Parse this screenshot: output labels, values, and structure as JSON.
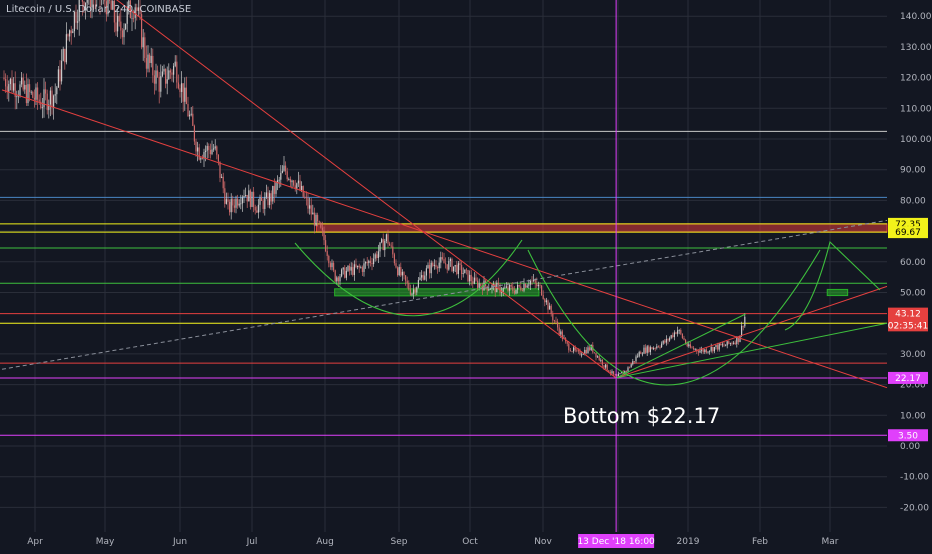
{
  "chart_title": "Litecoin / U.S. Dollar, 240, COINBASE",
  "annotation": "Bottom $22.17",
  "colors": {
    "background": "#131722",
    "grid": "#2a2e39",
    "axis_text": "#b2b5be",
    "candle_up": "#c9c9c9",
    "candle_down": "#d06a6a",
    "trend_red": "#e5403f",
    "trend_green": "#3dbf3d",
    "level_yellow": "#f2f21a",
    "level_white": "#c8c8c8",
    "level_blue": "#4a86c5",
    "level_magenta": "#e040fb",
    "zone_red": "#e03a3a",
    "zone_green": "#28b028"
  },
  "chart_data": {
    "type": "line",
    "style": "candlestick",
    "title": "Litecoin / U.S. Dollar, 240, COINBASE",
    "x_ticks": [
      "Apr",
      "May",
      "Jun",
      "Jul",
      "Aug",
      "Sep",
      "Oct",
      "Nov",
      "Dec",
      "2019",
      "Feb",
      "Mar"
    ],
    "y_ticks": [
      "140.00",
      "130.00",
      "120.00",
      "110.00",
      "100.00",
      "90.00",
      "80.00",
      "70.00",
      "60.00",
      "50.00",
      "40.00",
      "30.00",
      "20.00",
      "10.00",
      "0.00",
      "-10.00",
      "-20.00"
    ],
    "ylim": [
      -27,
      147
    ],
    "price_path": [
      {
        "date": "Mar 30",
        "price": 120
      },
      {
        "date": "Apr 4",
        "price": 112
      },
      {
        "date": "Apr 10",
        "price": 115
      },
      {
        "date": "Apr 16",
        "price": 135
      },
      {
        "date": "Apr 21",
        "price": 146
      },
      {
        "date": "Apr 27",
        "price": 147
      },
      {
        "date": "May 3",
        "price": 145
      },
      {
        "date": "May 8",
        "price": 135
      },
      {
        "date": "May 15",
        "price": 145
      },
      {
        "date": "May 20",
        "price": 126
      },
      {
        "date": "May 26",
        "price": 118
      },
      {
        "date": "Jun 2",
        "price": 124
      },
      {
        "date": "Jun 7",
        "price": 110
      },
      {
        "date": "Jun 12",
        "price": 96
      },
      {
        "date": "Jun 19",
        "price": 97
      },
      {
        "date": "Jun 25",
        "price": 77
      },
      {
        "date": "Jul 2",
        "price": 83
      },
      {
        "date": "Jul 8",
        "price": 78
      },
      {
        "date": "Jul 14",
        "price": 81
      },
      {
        "date": "Jul 20",
        "price": 90
      },
      {
        "date": "Jul 25",
        "price": 86
      },
      {
        "date": "Jul 31",
        "price": 77
      },
      {
        "date": "Aug 6",
        "price": 68
      },
      {
        "date": "Aug 11",
        "price": 55
      },
      {
        "date": "Aug 17",
        "price": 57
      },
      {
        "date": "Aug 23",
        "price": 58
      },
      {
        "date": "Aug 29",
        "price": 62
      },
      {
        "date": "Sep 3",
        "price": 68
      },
      {
        "date": "Sep 8",
        "price": 57
      },
      {
        "date": "Sep 14",
        "price": 50
      },
      {
        "date": "Sep 19",
        "price": 56
      },
      {
        "date": "Sep 25",
        "price": 60
      },
      {
        "date": "Oct 1",
        "price": 59
      },
      {
        "date": "Oct 6",
        "price": 57
      },
      {
        "date": "Oct 12",
        "price": 53
      },
      {
        "date": "Oct 18",
        "price": 52
      },
      {
        "date": "Oct 24",
        "price": 51
      },
      {
        "date": "Oct 30",
        "price": 51
      },
      {
        "date": "Nov 5",
        "price": 54
      },
      {
        "date": "Nov 10",
        "price": 51
      },
      {
        "date": "Nov 15",
        "price": 42
      },
      {
        "date": "Nov 21",
        "price": 33
      },
      {
        "date": "Nov 26",
        "price": 30
      },
      {
        "date": "Dec 2",
        "price": 32
      },
      {
        "date": "Dec 8",
        "price": 26
      },
      {
        "date": "Dec 13",
        "price": 22.17
      },
      {
        "date": "Dec 18",
        "price": 25
      },
      {
        "date": "Dec 24",
        "price": 31
      },
      {
        "date": "Dec 29",
        "price": 32
      },
      {
        "date": "Jan 4",
        "price": 34
      },
      {
        "date": "Jan 9",
        "price": 38
      },
      {
        "date": "Jan 14",
        "price": 32
      },
      {
        "date": "Jan 20",
        "price": 31
      },
      {
        "date": "Jan 25",
        "price": 32
      },
      {
        "date": "Jan 31",
        "price": 33
      },
      {
        "date": "Feb 5",
        "price": 35
      },
      {
        "date": "Feb 8",
        "price": 43
      }
    ],
    "price_tags": [
      {
        "label": "72.35",
        "value": 72.35,
        "bg": "#f2f21a",
        "fg": "#000000"
      },
      {
        "label": "69.67",
        "value": 69.67,
        "bg": "#f2f21a",
        "fg": "#000000"
      },
      {
        "label": "43.12",
        "value": 43.12,
        "bg": "#e5403f",
        "fg": "#ffffff"
      },
      {
        "label": "02:35:41",
        "value": 39.3,
        "bg": "#e5403f",
        "fg": "#ffffff"
      },
      {
        "label": "22.17",
        "value": 22.17,
        "bg": "#e040fb",
        "fg": "#ffffff"
      },
      {
        "label": "3.50",
        "value": 3.5,
        "bg": "#e040fb",
        "fg": "#ffffff"
      }
    ],
    "time_tags": [
      {
        "label": "13 Dec '18  16:00",
        "date": "Dec 13"
      }
    ],
    "horizontal_levels": [
      {
        "value": 102.5,
        "color": "#c8c8c8"
      },
      {
        "value": 81,
        "color": "#4a86c5"
      },
      {
        "value": 72.35,
        "color": "#f2f21a"
      },
      {
        "value": 69.67,
        "color": "#f2f21a"
      },
      {
        "value": 64.5,
        "color": "#3dbf3d"
      },
      {
        "value": 53,
        "color": "#3dbf3d"
      },
      {
        "value": 43.12,
        "color": "#e5403f"
      },
      {
        "value": 40,
        "color": "#f2f21a"
      },
      {
        "value": 27,
        "color": "#e5403f"
      },
      {
        "value": 22.17,
        "color": "#e040fb"
      },
      {
        "value": 3.5,
        "color": "#e040fb"
      }
    ],
    "zones": [
      {
        "from": "Aug 3",
        "to": "Mar 31",
        "low": 69.67,
        "high": 72.35,
        "color": "#e03a3a"
      },
      {
        "from": "Aug 11",
        "to": "Nov 9",
        "low": 48.9,
        "high": 51.2,
        "color": "#28b028"
      },
      {
        "from": "Mar 16",
        "to": "Mar 25",
        "low": 49,
        "high": 51,
        "color": "#28b028"
      }
    ],
    "vertical_markers": [
      {
        "date": "Dec 13",
        "color": "#e040fb"
      }
    ],
    "trendlines": [
      {
        "from": {
          "date": "Mar 30",
          "price": 116
        },
        "to": {
          "date": "Mar 31",
          "price": 19
        },
        "color": "#e5403f"
      },
      {
        "from": {
          "date": "May 4",
          "price": 147
        },
        "to": {
          "date": "Dec 13",
          "price": 22.17
        },
        "color": "#e5403f"
      },
      {
        "from": {
          "date": "Dec 13",
          "price": 22.17
        },
        "to": {
          "date": "Mar 31",
          "price": 52
        },
        "color": "#e5403f"
      },
      {
        "from": {
          "date": "Dec 13",
          "price": 22.17
        },
        "to": {
          "date": "Feb 8",
          "price": 43
        },
        "color": "#3dbf3d"
      },
      {
        "from": {
          "date": "Dec 13",
          "price": 22.17
        },
        "to": {
          "date": "Mar 31",
          "price": 40
        },
        "color": "#3dbf3d"
      },
      {
        "from": {
          "date": "Mar 30",
          "price": 25
        },
        "to": {
          "date": "Mar 31",
          "price": 73.5
        },
        "color": "#8a8f9a",
        "dashed": true
      }
    ]
  }
}
